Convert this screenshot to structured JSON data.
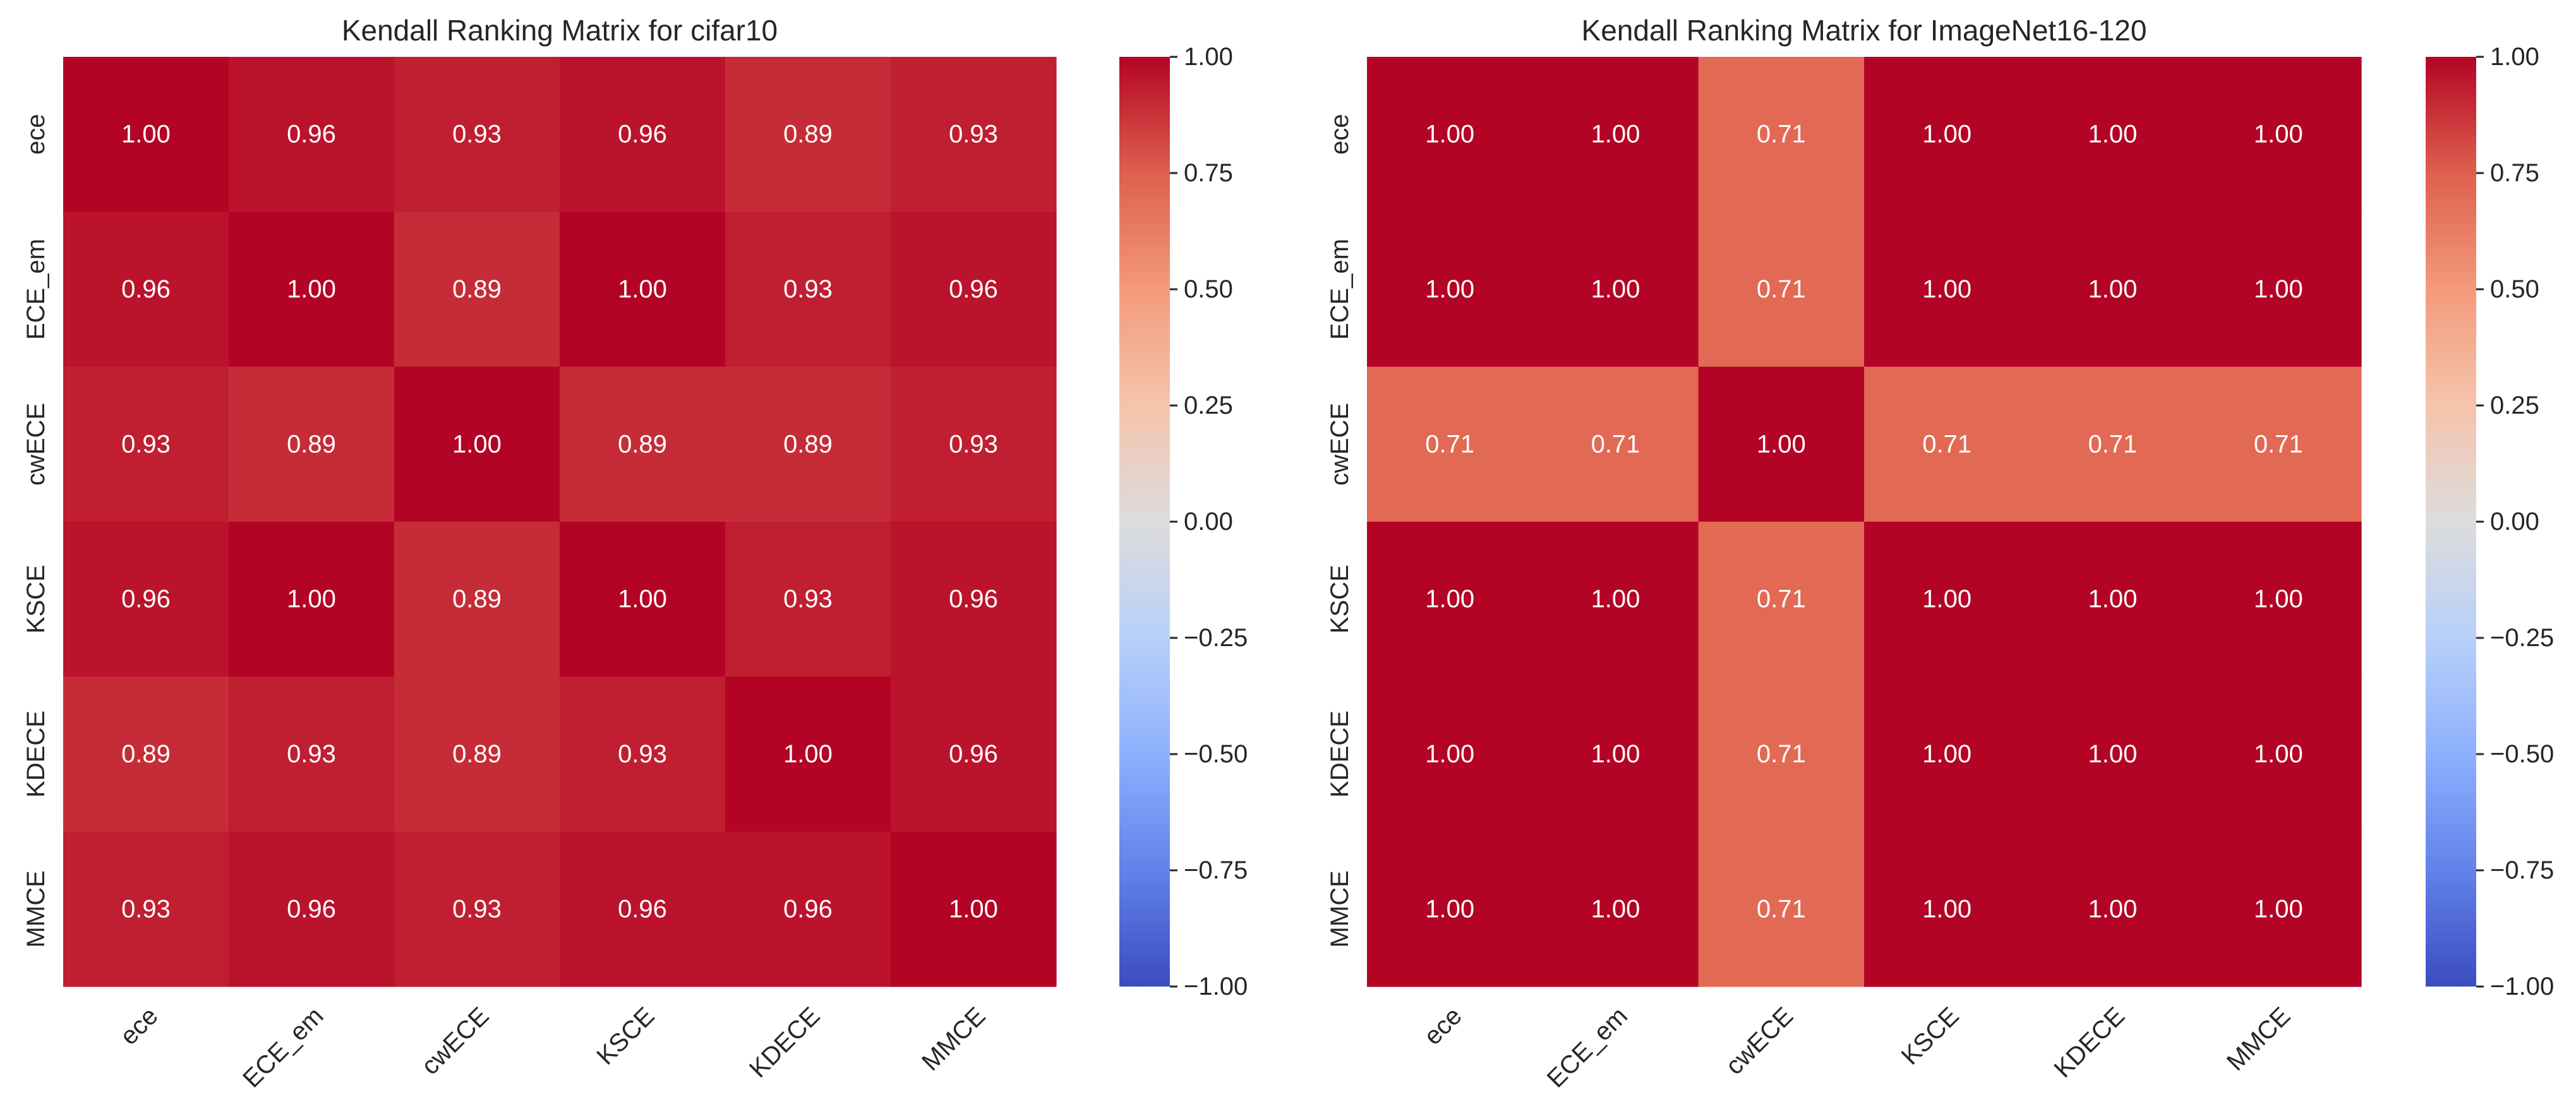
{
  "chart_data": [
    {
      "type": "heatmap",
      "title": "Kendall Ranking Matrix for cifar10",
      "x_labels": [
        "ece",
        "ECE_em",
        "cwECE",
        "KSCE",
        "KDECE",
        "MMCE"
      ],
      "y_labels": [
        "ece",
        "ECE_em",
        "cwECE",
        "KSCE",
        "KDECE",
        "MMCE"
      ],
      "values": [
        [
          1.0,
          0.96,
          0.93,
          0.96,
          0.89,
          0.93
        ],
        [
          0.96,
          1.0,
          0.89,
          1.0,
          0.93,
          0.96
        ],
        [
          0.93,
          0.89,
          1.0,
          0.89,
          0.89,
          0.93
        ],
        [
          0.96,
          1.0,
          0.89,
          1.0,
          0.93,
          0.96
        ],
        [
          0.89,
          0.93,
          0.89,
          0.93,
          1.0,
          0.96
        ],
        [
          0.93,
          0.96,
          0.93,
          0.96,
          0.96,
          1.0
        ]
      ],
      "colormap": "coolwarm",
      "vmin": -1.0,
      "vmax": 1.0,
      "colorbar_ticks": [
        "1.00",
        "0.75",
        "0.50",
        "0.25",
        "0.00",
        "−0.25",
        "−0.50",
        "−0.75",
        "−1.00"
      ]
    },
    {
      "type": "heatmap",
      "title": "Kendall Ranking Matrix for ImageNet16-120",
      "x_labels": [
        "ece",
        "ECE_em",
        "cwECE",
        "KSCE",
        "KDECE",
        "MMCE"
      ],
      "y_labels": [
        "ece",
        "ECE_em",
        "cwECE",
        "KSCE",
        "KDECE",
        "MMCE"
      ],
      "values": [
        [
          1.0,
          1.0,
          0.71,
          1.0,
          1.0,
          1.0
        ],
        [
          1.0,
          1.0,
          0.71,
          1.0,
          1.0,
          1.0
        ],
        [
          0.71,
          0.71,
          1.0,
          0.71,
          0.71,
          0.71
        ],
        [
          1.0,
          1.0,
          0.71,
          1.0,
          1.0,
          1.0
        ],
        [
          1.0,
          1.0,
          0.71,
          1.0,
          1.0,
          1.0
        ],
        [
          1.0,
          1.0,
          0.71,
          1.0,
          1.0,
          1.0
        ]
      ],
      "colormap": "coolwarm",
      "vmin": -1.0,
      "vmax": 1.0,
      "colorbar_ticks": [
        "1.00",
        "0.75",
        "0.50",
        "0.25",
        "0.00",
        "−0.25",
        "−0.50",
        "−0.75",
        "−1.00"
      ]
    }
  ]
}
